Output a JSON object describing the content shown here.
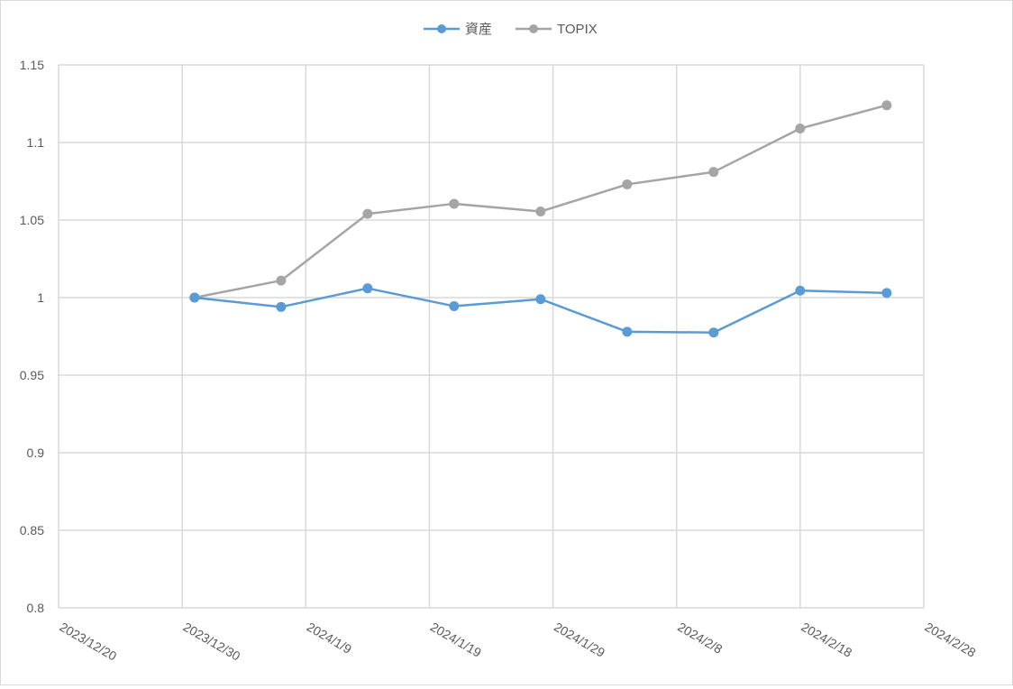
{
  "chart_data": {
    "type": "line",
    "title": "",
    "xlabel": "",
    "ylabel": "",
    "x_ticks": [
      "2023/12/20",
      "2023/12/30",
      "2024/1/9",
      "2024/1/19",
      "2024/1/29",
      "2024/2/8",
      "2024/2/18",
      "2024/2/28"
    ],
    "y_ticks": [
      "0.8",
      "0.85",
      "0.9",
      "0.95",
      "1",
      "1.05",
      "1.1",
      "1.15"
    ],
    "ylim": [
      0.8,
      1.15
    ],
    "xlim": [
      "2023/12/20",
      "2024/2/28"
    ],
    "grid": true,
    "legend_position": "top",
    "x": [
      "2023/12/31",
      "2024/1/7",
      "2024/1/14",
      "2024/1/21",
      "2024/1/28",
      "2024/2/4",
      "2024/2/11",
      "2024/2/18",
      "2024/2/25"
    ],
    "series": [
      {
        "name": "資産",
        "color": "#5b9bd5",
        "values": [
          1.0,
          0.994,
          1.006,
          0.9945,
          0.999,
          0.978,
          0.9775,
          1.0045,
          1.003
        ]
      },
      {
        "name": "TOPIX",
        "color": "#a5a5a5",
        "values": [
          1.0,
          1.011,
          1.054,
          1.0605,
          1.0555,
          1.073,
          1.081,
          1.109,
          1.124
        ]
      }
    ]
  }
}
